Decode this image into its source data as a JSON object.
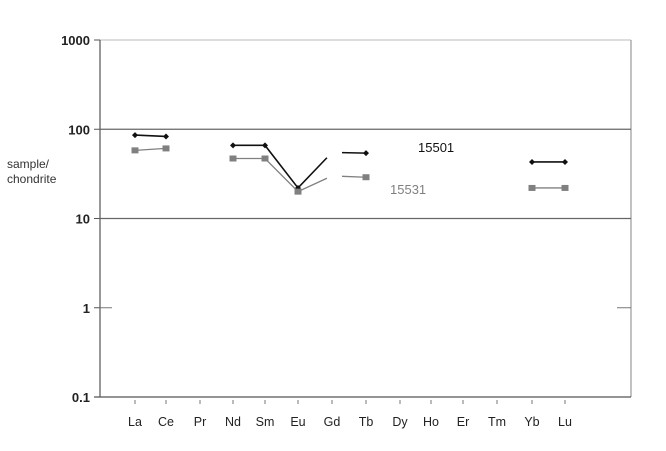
{
  "chart_data": {
    "type": "line",
    "ylabel": [
      "sample/",
      "chondrite"
    ],
    "yscale": "log",
    "ylim": [
      0.1,
      1000
    ],
    "yticks": [
      "1000",
      "100",
      "10",
      "1",
      "0.1"
    ],
    "yticks_values": [
      1000,
      100,
      10,
      1,
      0.1
    ],
    "categories": [
      "La",
      "Ce",
      "Pr",
      "Nd",
      "Sm",
      "Eu",
      "Gd",
      "Tb",
      "Dy",
      "Ho",
      "Er",
      "Tm",
      "Yb",
      "Lu"
    ],
    "grid": "horizontal at 10 and 100",
    "series": [
      {
        "name": "15501",
        "color": "#111111",
        "marker": "diamond",
        "values": [
          86,
          83,
          null,
          66,
          66,
          22,
          55,
          54,
          null,
          null,
          null,
          null,
          43,
          43
        ]
      },
      {
        "name": "15531",
        "color": "#808080",
        "marker": "square",
        "values": [
          58,
          61,
          null,
          47,
          47,
          20,
          30,
          29,
          null,
          null,
          null,
          null,
          22,
          22
        ]
      }
    ]
  }
}
